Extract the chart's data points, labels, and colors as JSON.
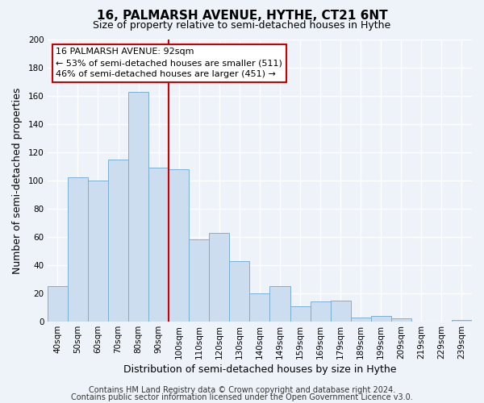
{
  "title": "16, PALMARSH AVENUE, HYTHE, CT21 6NT",
  "subtitle": "Size of property relative to semi-detached houses in Hythe",
  "xlabel": "Distribution of semi-detached houses by size in Hythe",
  "ylabel": "Number of semi-detached properties",
  "bar_labels": [
    "40sqm",
    "50sqm",
    "60sqm",
    "70sqm",
    "80sqm",
    "90sqm",
    "100sqm",
    "110sqm",
    "120sqm",
    "130sqm",
    "140sqm",
    "149sqm",
    "159sqm",
    "169sqm",
    "179sqm",
    "189sqm",
    "199sqm",
    "209sqm",
    "219sqm",
    "229sqm",
    "239sqm"
  ],
  "bar_values": [
    25,
    102,
    100,
    115,
    163,
    109,
    108,
    58,
    63,
    43,
    20,
    25,
    11,
    14,
    15,
    3,
    4,
    2,
    0,
    0,
    1
  ],
  "bar_color": "#ccddf0",
  "bar_edge_color": "#7aafd4",
  "marker_bin_index": 5,
  "marker_color": "#cc0000",
  "annotation_lines": [
    "16 PALMARSH AVENUE: 92sqm",
    "← 53% of semi-detached houses are smaller (511)",
    "46% of semi-detached houses are larger (451) →"
  ],
  "annotation_box_color": "#ffffff",
  "annotation_box_edge": "#cc0000",
  "ylim": [
    0,
    200
  ],
  "yticks": [
    0,
    20,
    40,
    60,
    80,
    100,
    120,
    140,
    160,
    180,
    200
  ],
  "footer_line1": "Contains HM Land Registry data © Crown copyright and database right 2024.",
  "footer_line2": "Contains public sector information licensed under the Open Government Licence v3.0.",
  "background_color": "#eef2f9",
  "grid_color": "#ffffff",
  "title_fontsize": 11,
  "subtitle_fontsize": 9,
  "axis_label_fontsize": 9,
  "tick_fontsize": 7.5,
  "footer_fontsize": 7,
  "annotation_fontsize": 8
}
